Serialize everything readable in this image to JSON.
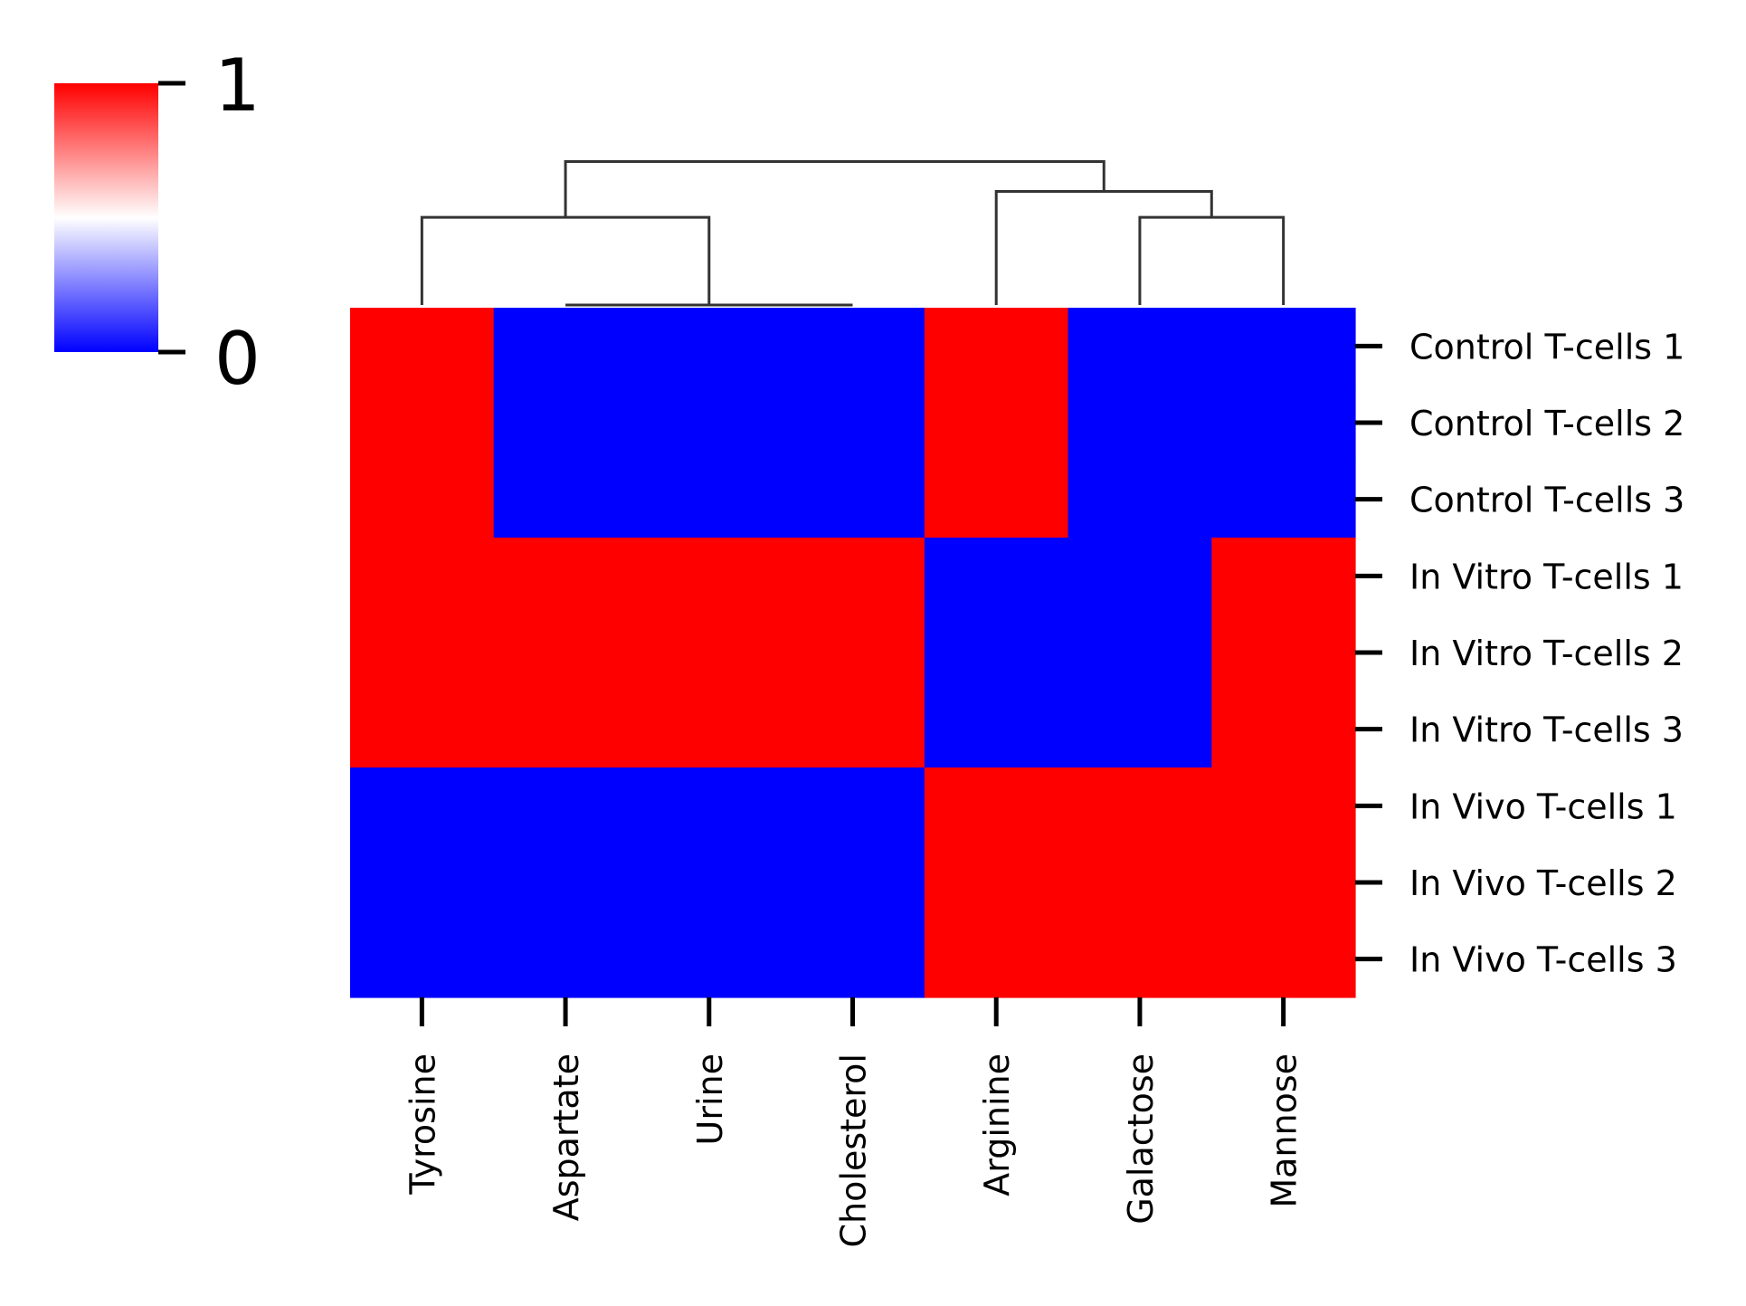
{
  "chart_data": {
    "type": "heatmap",
    "title": "",
    "xlabel": "",
    "ylabel": "",
    "columns": [
      "Tyrosine",
      "Aspartate",
      "Urine",
      "Cholesterol",
      "Arginine",
      "Galactose",
      "Mannose"
    ],
    "rows": [
      "Control T-cells 1",
      "Control T-cells 2",
      "Control T-cells 3",
      "In Vitro T-cells 1",
      "In Vitro T-cells 2",
      "In Vitro T-cells 3",
      "In Vivo T-cells 1",
      "In Vivo T-cells 2",
      "In Vivo T-cells 3"
    ],
    "values": [
      [
        1,
        0,
        0,
        0,
        1,
        0,
        0
      ],
      [
        1,
        0,
        0,
        0,
        1,
        0,
        0
      ],
      [
        1,
        0,
        0,
        0,
        1,
        0,
        0
      ],
      [
        1,
        1,
        1,
        1,
        0,
        0,
        1
      ],
      [
        1,
        1,
        1,
        1,
        0,
        0,
        1
      ],
      [
        1,
        1,
        1,
        1,
        0,
        0,
        1
      ],
      [
        0,
        0,
        0,
        0,
        1,
        1,
        1
      ],
      [
        0,
        0,
        0,
        0,
        1,
        1,
        1
      ],
      [
        0,
        0,
        0,
        0,
        1,
        1,
        1
      ]
    ],
    "colorbar": {
      "min": 0,
      "max": 1,
      "tick_labels": [
        "1",
        "0"
      ],
      "colors": [
        "#0000ff",
        "#ffffff",
        "#ff0000"
      ],
      "placement": "top-left"
    },
    "column_dendrogram": {
      "placement": "top",
      "merges": [
        {
          "left": "Aspartate",
          "right": "Cholesterol",
          "height": 0.0
        },
        {
          "left": "Aspartate+Urine+Cholesterol",
          "right": "Urine",
          "height": 0.0
        },
        {
          "left": "Galactose",
          "right": "Mannose",
          "height": 1.73
        },
        {
          "left": "Arginine",
          "right": "Galactose+Mannose",
          "height": 2.24
        },
        {
          "left": "Tyrosine",
          "right": "Aspartate+Urine+Cholesterol",
          "height": 1.73
        },
        {
          "left": "Tyrosine-cluster",
          "right": "Arginine-cluster",
          "height": 2.83
        }
      ]
    },
    "grid": false
  }
}
